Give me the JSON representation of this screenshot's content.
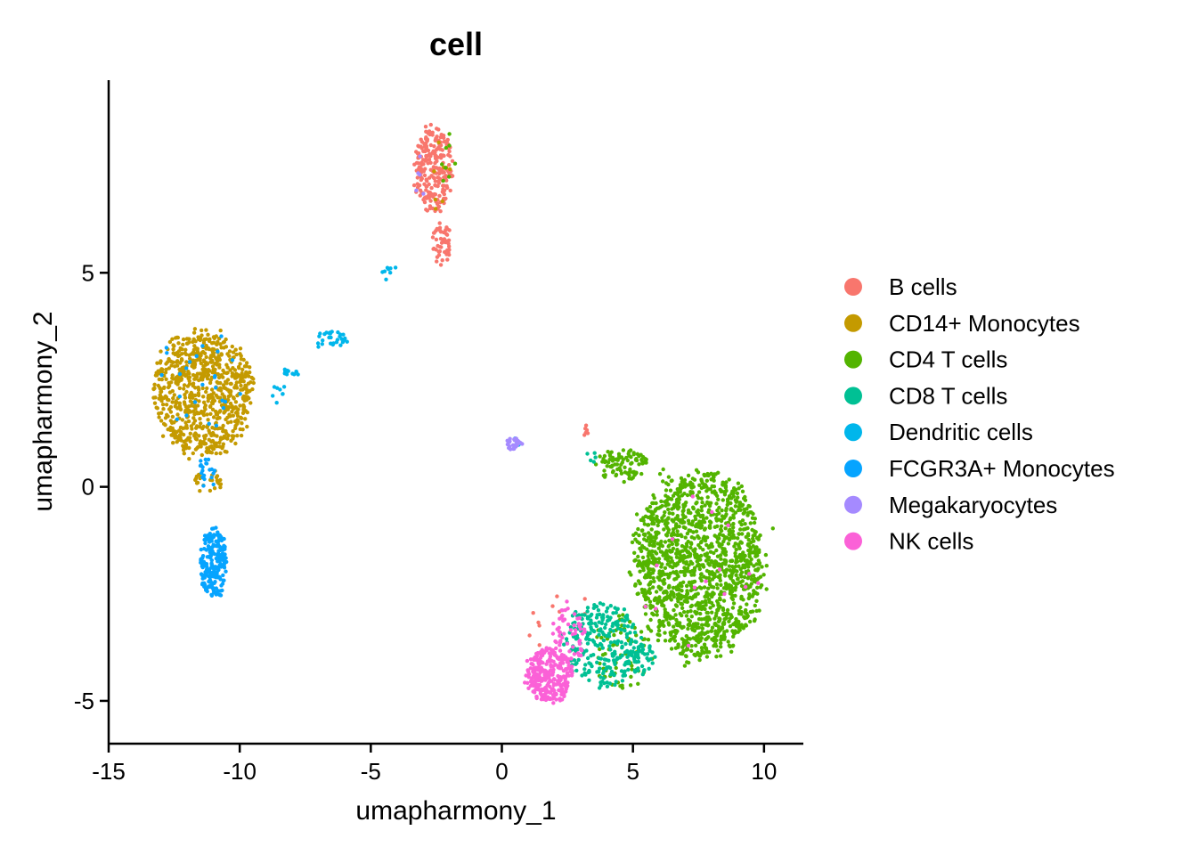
{
  "chart_data": {
    "type": "scatter",
    "title": "cell",
    "xlabel": "umapharmony_1",
    "ylabel": "umapharmony_2",
    "xlim": [
      -15,
      11.5
    ],
    "ylim": [
      -6,
      9.5
    ],
    "xticks": [
      -15,
      -10,
      -5,
      0,
      5,
      10
    ],
    "yticks": [
      -5,
      0,
      5
    ],
    "grid": false,
    "legend_position": "right",
    "series": [
      {
        "name": "B cells",
        "color": "#F8766D",
        "clusters": [
          {
            "cx": -2.6,
            "cy": 7.4,
            "rx": 0.8,
            "ry": 1.1,
            "n": 240
          },
          {
            "cx": -2.3,
            "cy": 5.7,
            "rx": 0.4,
            "ry": 0.6,
            "n": 50
          },
          {
            "cx": 3.2,
            "cy": 1.3,
            "rx": 0.15,
            "ry": 0.2,
            "n": 6
          },
          {
            "cx": 2.4,
            "cy": -3.2,
            "rx": 1.4,
            "ry": 1.0,
            "n": 10
          }
        ]
      },
      {
        "name": "CD14+ Monocytes",
        "color": "#C49A00",
        "clusters": [
          {
            "cx": -11.4,
            "cy": 2.2,
            "rx": 2.1,
            "ry": 1.6,
            "n": 780
          },
          {
            "cx": -11.2,
            "cy": 0.1,
            "rx": 0.6,
            "ry": 0.3,
            "n": 25
          },
          {
            "cx": -2.3,
            "cy": 7.2,
            "rx": 0.4,
            "ry": 1.0,
            "n": 8
          }
        ]
      },
      {
        "name": "CD4 T cells",
        "color": "#53B400",
        "clusters": [
          {
            "cx": 7.5,
            "cy": -1.8,
            "rx": 2.7,
            "ry": 2.4,
            "n": 1500
          },
          {
            "cx": 4.6,
            "cy": 0.5,
            "rx": 1.1,
            "ry": 0.4,
            "n": 90
          },
          {
            "cx": 4.7,
            "cy": -3.8,
            "rx": 1.3,
            "ry": 1.0,
            "n": 70
          },
          {
            "cx": -2.1,
            "cy": 7.6,
            "rx": 0.4,
            "ry": 0.8,
            "n": 8
          }
        ]
      },
      {
        "name": "CD8 T cells",
        "color": "#00C094",
        "clusters": [
          {
            "cx": 3.8,
            "cy": -3.7,
            "rx": 1.6,
            "ry": 1.1,
            "n": 260
          },
          {
            "cx": 5.3,
            "cy": -4.0,
            "rx": 0.7,
            "ry": 0.4,
            "n": 40
          },
          {
            "cx": 3.4,
            "cy": 0.7,
            "rx": 0.2,
            "ry": 0.2,
            "n": 5
          }
        ]
      },
      {
        "name": "Dendritic cells",
        "color": "#00B6EB",
        "clusters": [
          {
            "cx": -6.5,
            "cy": 3.4,
            "rx": 0.7,
            "ry": 0.3,
            "n": 30
          },
          {
            "cx": -8.0,
            "cy": 2.7,
            "rx": 0.4,
            "ry": 0.1,
            "n": 12
          },
          {
            "cx": -4.3,
            "cy": 5.0,
            "rx": 0.4,
            "ry": 0.2,
            "n": 8
          },
          {
            "cx": -8.5,
            "cy": 2.2,
            "rx": 0.3,
            "ry": 0.3,
            "n": 8
          },
          {
            "cx": 0.6,
            "cy": 1.0,
            "rx": 0.2,
            "ry": 0.15,
            "n": 5
          }
        ]
      },
      {
        "name": "FCGR3A+ Monocytes",
        "color": "#06A4FF",
        "clusters": [
          {
            "cx": -11.0,
            "cy": -1.8,
            "rx": 0.55,
            "ry": 0.9,
            "n": 220
          },
          {
            "cx": -11.3,
            "cy": 0.3,
            "rx": 0.6,
            "ry": 0.4,
            "n": 20
          },
          {
            "cx": -11.5,
            "cy": 2.5,
            "rx": 1.8,
            "ry": 1.4,
            "n": 25
          }
        ]
      },
      {
        "name": "Megakaryocytes",
        "color": "#A58AFF",
        "clusters": [
          {
            "cx": 0.5,
            "cy": 1.0,
            "rx": 0.35,
            "ry": 0.2,
            "n": 30
          },
          {
            "cx": -3.1,
            "cy": 7.3,
            "rx": 0.3,
            "ry": 0.6,
            "n": 5
          }
        ]
      },
      {
        "name": "NK cells",
        "color": "#FB61D7",
        "clusters": [
          {
            "cx": 1.8,
            "cy": -4.4,
            "rx": 1.0,
            "ry": 0.7,
            "n": 280
          },
          {
            "cx": 2.6,
            "cy": -3.4,
            "rx": 0.7,
            "ry": 0.7,
            "n": 60
          },
          {
            "cx": 7.5,
            "cy": -2.0,
            "rx": 2.5,
            "ry": 2.0,
            "n": 15
          }
        ]
      }
    ]
  }
}
